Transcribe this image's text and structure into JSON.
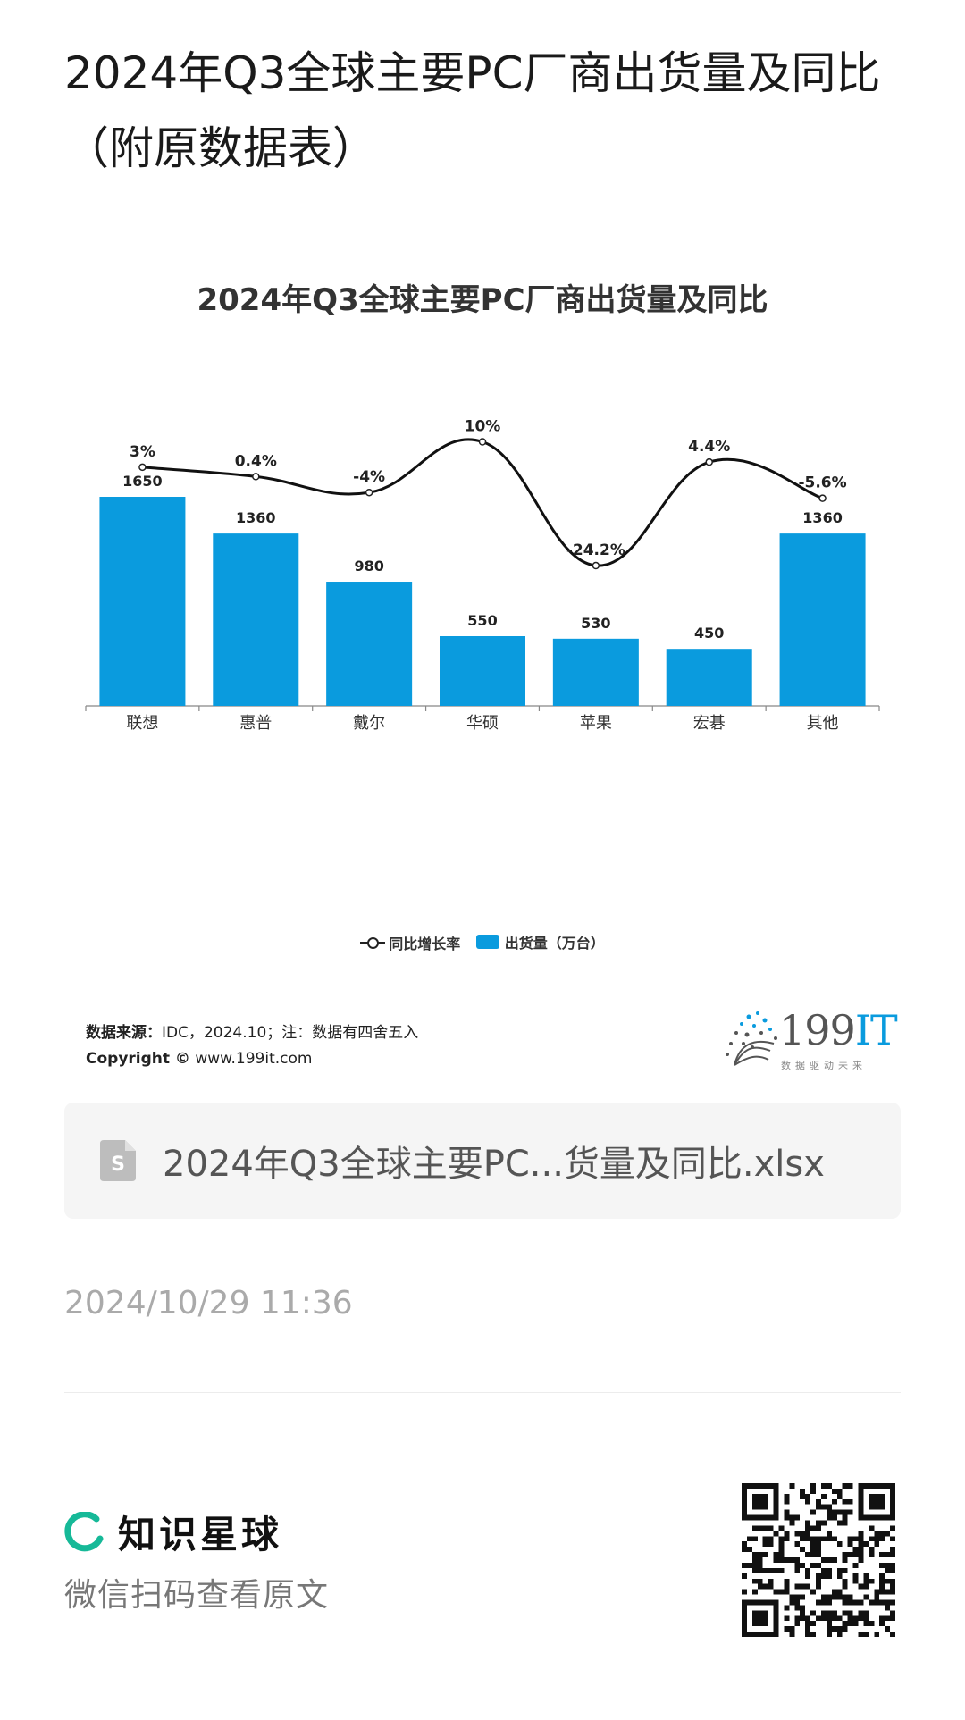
{
  "page": {
    "title": "2024年Q3全球主要PC厂商出货量及同比（附原数据表）"
  },
  "chart": {
    "title": "2024年Q3全球主要PC厂商出货量及同比",
    "legend": {
      "line_label": "同比增长率",
      "bar_label": "出货量（万台）"
    },
    "source_label": "数据来源：",
    "source_text": "IDC，2024.10；注：数据有四舍五入",
    "copyright_label": "Copyright ©",
    "copyright_text": "www.199it.com",
    "brand": "199",
    "brand_it": "IT",
    "brand_sub": "数据驱动未来"
  },
  "chart_data": {
    "type": "bar",
    "title": "2024年Q3全球主要PC厂商出货量及同比",
    "categories": [
      "联想",
      "惠普",
      "戴尔",
      "华硕",
      "苹果",
      "宏碁",
      "其他"
    ],
    "series": [
      {
        "name": "出货量（万台）",
        "type": "bar",
        "values": [
          1650,
          1360,
          980,
          550,
          530,
          450,
          1360
        ],
        "labels": [
          "1650",
          "1360",
          "980",
          "550",
          "530",
          "450",
          "1360"
        ]
      },
      {
        "name": "同比增长率",
        "type": "line",
        "values": [
          3,
          0.4,
          -4,
          10,
          -24.2,
          4.4,
          -5.6
        ],
        "labels": [
          "3%",
          "0.4%",
          "-4%",
          "10%",
          "-24.2%",
          "4.4%",
          "-5.6%"
        ]
      }
    ],
    "legend_position": "bottom",
    "grid": false,
    "colors": {
      "bar": "#0a9bde",
      "line": "#111111"
    }
  },
  "attachment": {
    "file_name": "2024年Q3全球主要PC...货量及同比.xlsx",
    "icon": "spreadsheet-file-icon"
  },
  "meta": {
    "timestamp": "2024/10/29 11:36"
  },
  "footer": {
    "brand_name": "知识星球",
    "scan_hint": "微信扫码查看原文",
    "logo_color": "#16b998",
    "qr_icon": "qr-code-icon"
  }
}
